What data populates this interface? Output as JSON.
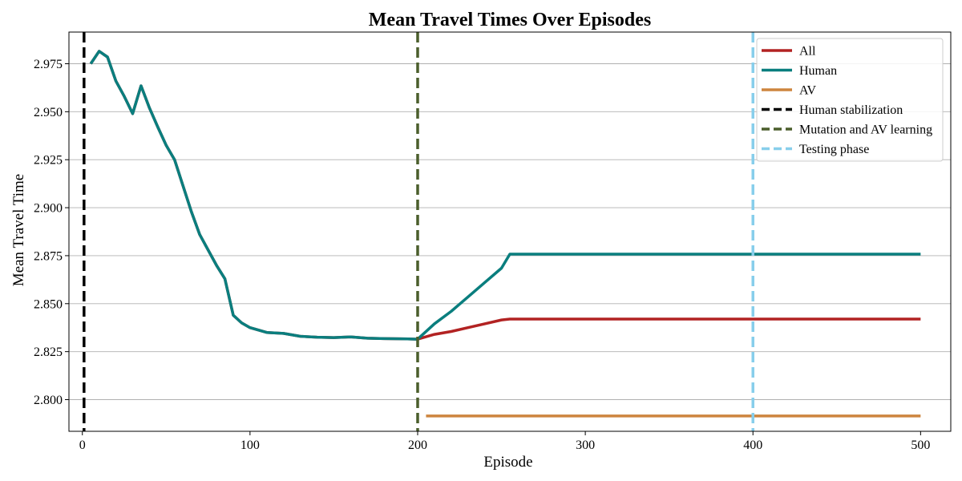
{
  "chart_data": {
    "type": "line",
    "title": "Mean Travel Times Over Episodes",
    "xlabel": "Episode",
    "ylabel": "Mean Travel Time",
    "xlim": [
      -8,
      518
    ],
    "ylim": [
      2.7835,
      2.9915
    ],
    "xticks": [
      0,
      100,
      200,
      300,
      400,
      500
    ],
    "yticks": [
      2.8,
      2.825,
      2.85,
      2.875,
      2.9,
      2.925,
      2.95,
      2.975
    ],
    "ytick_labels": [
      "2.800",
      "2.825",
      "2.850",
      "2.875",
      "2.900",
      "2.925",
      "2.950",
      "2.975"
    ],
    "grid": "horizontal",
    "legend_position": "top-right",
    "series": [
      {
        "name": "All",
        "color": "#b22222",
        "style": "solid",
        "x": [
          5,
          10,
          15,
          20,
          25,
          30,
          35,
          40,
          45,
          50,
          55,
          60,
          65,
          70,
          75,
          80,
          85,
          90,
          95,
          100,
          110,
          120,
          130,
          140,
          150,
          160,
          170,
          180,
          190,
          200,
          210,
          220,
          230,
          240,
          250,
          255,
          300,
          400,
          500
        ],
        "y": [
          2.975,
          2.9815,
          2.9785,
          2.966,
          2.958,
          2.949,
          2.9635,
          2.952,
          2.942,
          2.9325,
          2.925,
          2.9115,
          2.898,
          2.886,
          2.878,
          2.87,
          2.863,
          2.844,
          2.84,
          2.8375,
          2.835,
          2.8345,
          2.833,
          2.8325,
          2.8323,
          2.8327,
          2.832,
          2.8318,
          2.8317,
          2.8315,
          2.834,
          2.8355,
          2.8375,
          2.8395,
          2.8415,
          2.842,
          2.842,
          2.842,
          2.842
        ]
      },
      {
        "name": "Human",
        "color": "#0a7e7e",
        "style": "solid",
        "x": [
          5,
          10,
          15,
          20,
          25,
          30,
          35,
          40,
          45,
          50,
          55,
          60,
          65,
          70,
          75,
          80,
          85,
          90,
          95,
          100,
          110,
          120,
          130,
          140,
          150,
          160,
          170,
          180,
          190,
          200,
          210,
          220,
          230,
          240,
          250,
          255,
          300,
          400,
          500
        ],
        "y": [
          2.975,
          2.9815,
          2.9785,
          2.966,
          2.958,
          2.949,
          2.9635,
          2.952,
          2.942,
          2.9325,
          2.925,
          2.9115,
          2.898,
          2.886,
          2.878,
          2.87,
          2.863,
          2.844,
          2.84,
          2.8375,
          2.835,
          2.8345,
          2.833,
          2.8325,
          2.8323,
          2.8327,
          2.832,
          2.8318,
          2.8317,
          2.8315,
          2.8395,
          2.846,
          2.8535,
          2.861,
          2.8685,
          2.8758,
          2.8758,
          2.8758,
          2.8758
        ]
      },
      {
        "name": "AV",
        "color": "#cd853f",
        "style": "solid",
        "x": [
          205,
          300,
          400,
          500
        ],
        "y": [
          2.7915,
          2.7915,
          2.7915,
          2.7915
        ]
      }
    ],
    "vlines": [
      {
        "name": "Human stabilization",
        "x": 1,
        "color": "#000000",
        "style": "dashed"
      },
      {
        "name": "Mutation and AV learning",
        "x": 200,
        "color": "#4b5e2c",
        "style": "dashed"
      },
      {
        "name": "Testing phase",
        "x": 400,
        "color": "#87ceeb",
        "style": "dashed"
      }
    ]
  }
}
